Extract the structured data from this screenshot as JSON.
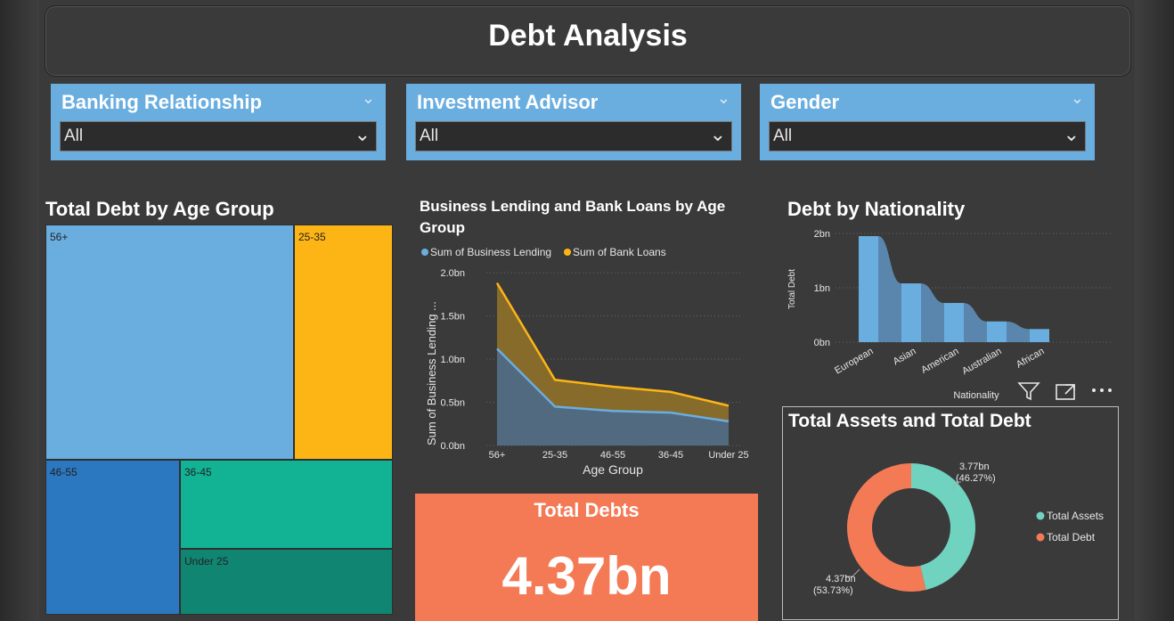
{
  "page": {
    "title": "Debt Analysis"
  },
  "slicers": [
    {
      "label": "Banking Relationship",
      "value": "All"
    },
    {
      "label": "Investment Advisor",
      "value": "All"
    },
    {
      "label": "Gender",
      "value": "All"
    }
  ],
  "treemap": {
    "title": "Total Debt by Age Group",
    "tiles": [
      {
        "label": "56+",
        "color": "#6aaee0"
      },
      {
        "label": "25-35",
        "color": "#fdb516"
      },
      {
        "label": "46-55",
        "color": "#2b77c0"
      },
      {
        "label": "36-45",
        "color": "#12b295"
      },
      {
        "label": "Under 25",
        "color": "#108672"
      }
    ]
  },
  "area_chart": {
    "title_line1": "Business Lending and Bank Loans by Age",
    "title_line2": "Group",
    "legend": [
      "Sum of Business Lending",
      "Sum of Bank Loans"
    ],
    "ylabel": "Sum of Business Lending ...",
    "xlabel": "Age Group",
    "yticks": [
      "2.0bn",
      "1.5bn",
      "1.0bn",
      "0.5bn",
      "0.0bn"
    ]
  },
  "nationality_chart": {
    "title": "Debt by Nationality",
    "ylabel": "Total Debt",
    "xlabel": "Nationality",
    "yticks": [
      "2bn",
      "1bn",
      "0bn"
    ],
    "xticks": [
      "European",
      "Asian",
      "American",
      "Australian",
      "African"
    ]
  },
  "kpi": {
    "title": "Total Debts",
    "value": "4.37bn"
  },
  "donut": {
    "title": "Total Assets and Total Debt",
    "assets_label1": "3.77bn",
    "assets_label2": "(46.27%)",
    "debt_label1": "4.37bn",
    "debt_label2": "(53.73%)",
    "legend": [
      "Total Assets",
      "Total Debt"
    ]
  },
  "colors": {
    "blue": "#6aaee0",
    "orange": "#fdb516",
    "teal": "#6fd3c0",
    "coral": "#f47a56"
  },
  "chart_data": [
    {
      "type": "area",
      "title": "Business Lending and Bank Loans by Age Group",
      "categories": [
        "56+",
        "25-35",
        "46-55",
        "36-45",
        "Under 25"
      ],
      "series": [
        {
          "name": "Sum of Business Lending",
          "values": [
            1.12,
            0.45,
            0.4,
            0.38,
            0.28
          ]
        },
        {
          "name": "Sum of Bank Loans",
          "values": [
            1.88,
            0.76,
            0.68,
            0.62,
            0.46
          ]
        }
      ],
      "ylim": [
        0,
        2.0
      ],
      "xlabel": "Age Group",
      "ylabel": "Sum of Business Lending ..."
    },
    {
      "type": "bar",
      "title": "Debt by Nationality",
      "categories": [
        "European",
        "Asian",
        "American",
        "Australian",
        "African"
      ],
      "values": [
        1.95,
        1.08,
        0.72,
        0.38,
        0.24
      ],
      "ylim": [
        0,
        2.0
      ],
      "xlabel": "Nationality",
      "ylabel": "Total Debt"
    },
    {
      "type": "pie",
      "title": "Total Assets and Total Debt",
      "categories": [
        "Total Assets",
        "Total Debt"
      ],
      "values": [
        3.77,
        4.37
      ],
      "percent": [
        46.27,
        53.73
      ]
    }
  ]
}
